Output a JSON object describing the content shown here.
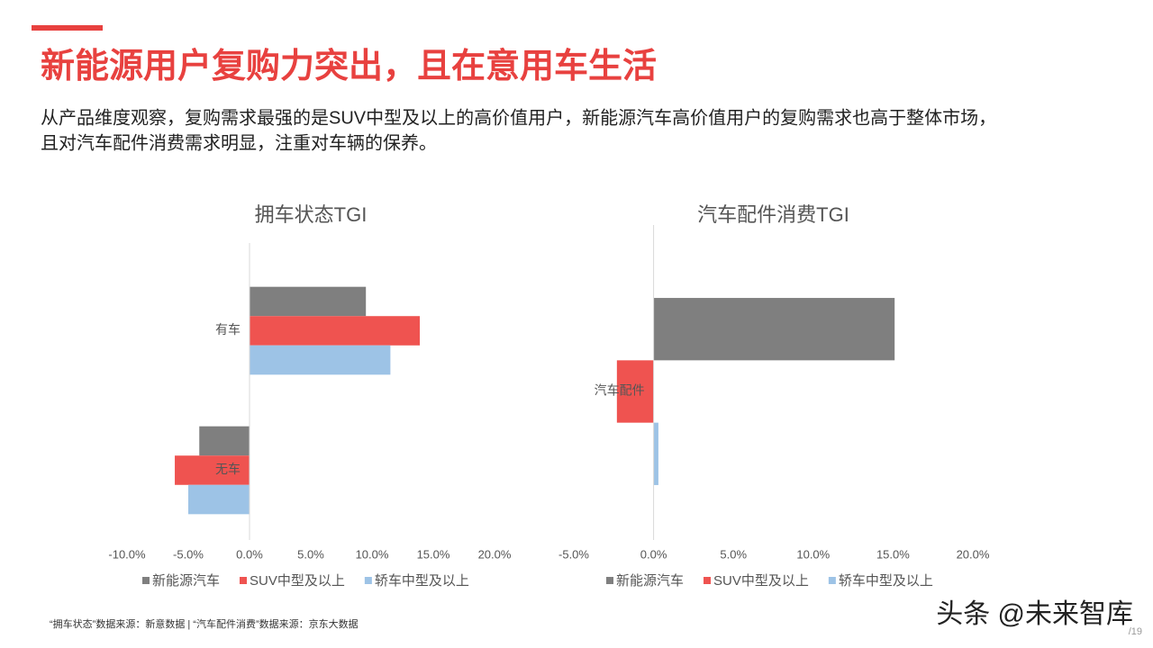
{
  "slide": {
    "title": "新能源用户复购力突出，且在意用车生活",
    "subtitle": [
      "从产品维度观察，复购需求最强的是SUV中型及以上的高价值用户，新能源汽车高价值用户的复购需求也高于整体市场，",
      "且对汽车配件消费需求明显，注重对车辆的保养。"
    ],
    "footnote": "“拥车状态”数据来源：新意数据  |  “汽车配件消费”数据来源：京东大数据",
    "watermark": "头条 @未来智库",
    "page": "/19"
  },
  "chart_data": [
    {
      "type": "barh",
      "title": "拥车状态TGI",
      "categories": [
        "有车",
        "无车"
      ],
      "series": [
        {
          "name": "新能源汽车",
          "color": "#7f7f7f",
          "values": [
            9.5,
            -4.1
          ]
        },
        {
          "name": "SUV中型及以上",
          "color": "#ef5350",
          "values": [
            13.9,
            -6.1
          ]
        },
        {
          "name": "轿车中型及以上",
          "color": "#9dc3e6",
          "values": [
            11.5,
            -5.0
          ]
        }
      ],
      "xlim": [
        -10,
        20
      ],
      "xticks": [
        {
          "value": -10,
          "label": "-10.0%"
        },
        {
          "value": -5,
          "label": "-5.0%"
        },
        {
          "value": 0,
          "label": "0.0%"
        },
        {
          "value": 5,
          "label": "5.0%"
        },
        {
          "value": 10,
          "label": "10.0%"
        },
        {
          "value": 15,
          "label": "15.0%"
        },
        {
          "value": 20,
          "label": "20.0%"
        }
      ],
      "legend": "bottom"
    },
    {
      "type": "barh",
      "title": "汽车配件消费TGI",
      "categories": [
        "汽车配件"
      ],
      "series": [
        {
          "name": "新能源汽车",
          "color": "#7f7f7f",
          "values": [
            15.1
          ]
        },
        {
          "name": "SUV中型及以上",
          "color": "#ef5350",
          "values": [
            -2.3
          ]
        },
        {
          "name": "轿车中型及以上",
          "color": "#9dc3e6",
          "values": [
            0.3
          ]
        }
      ],
      "xlim": [
        -5,
        20
      ],
      "xticks": [
        {
          "value": -5,
          "label": "-5.0%"
        },
        {
          "value": 0,
          "label": "0.0%"
        },
        {
          "value": 5,
          "label": "5.0%"
        },
        {
          "value": 10,
          "label": "10.0%"
        },
        {
          "value": 15,
          "label": "15.0%"
        },
        {
          "value": 20,
          "label": "20.0%"
        }
      ],
      "legend": "bottom"
    }
  ]
}
